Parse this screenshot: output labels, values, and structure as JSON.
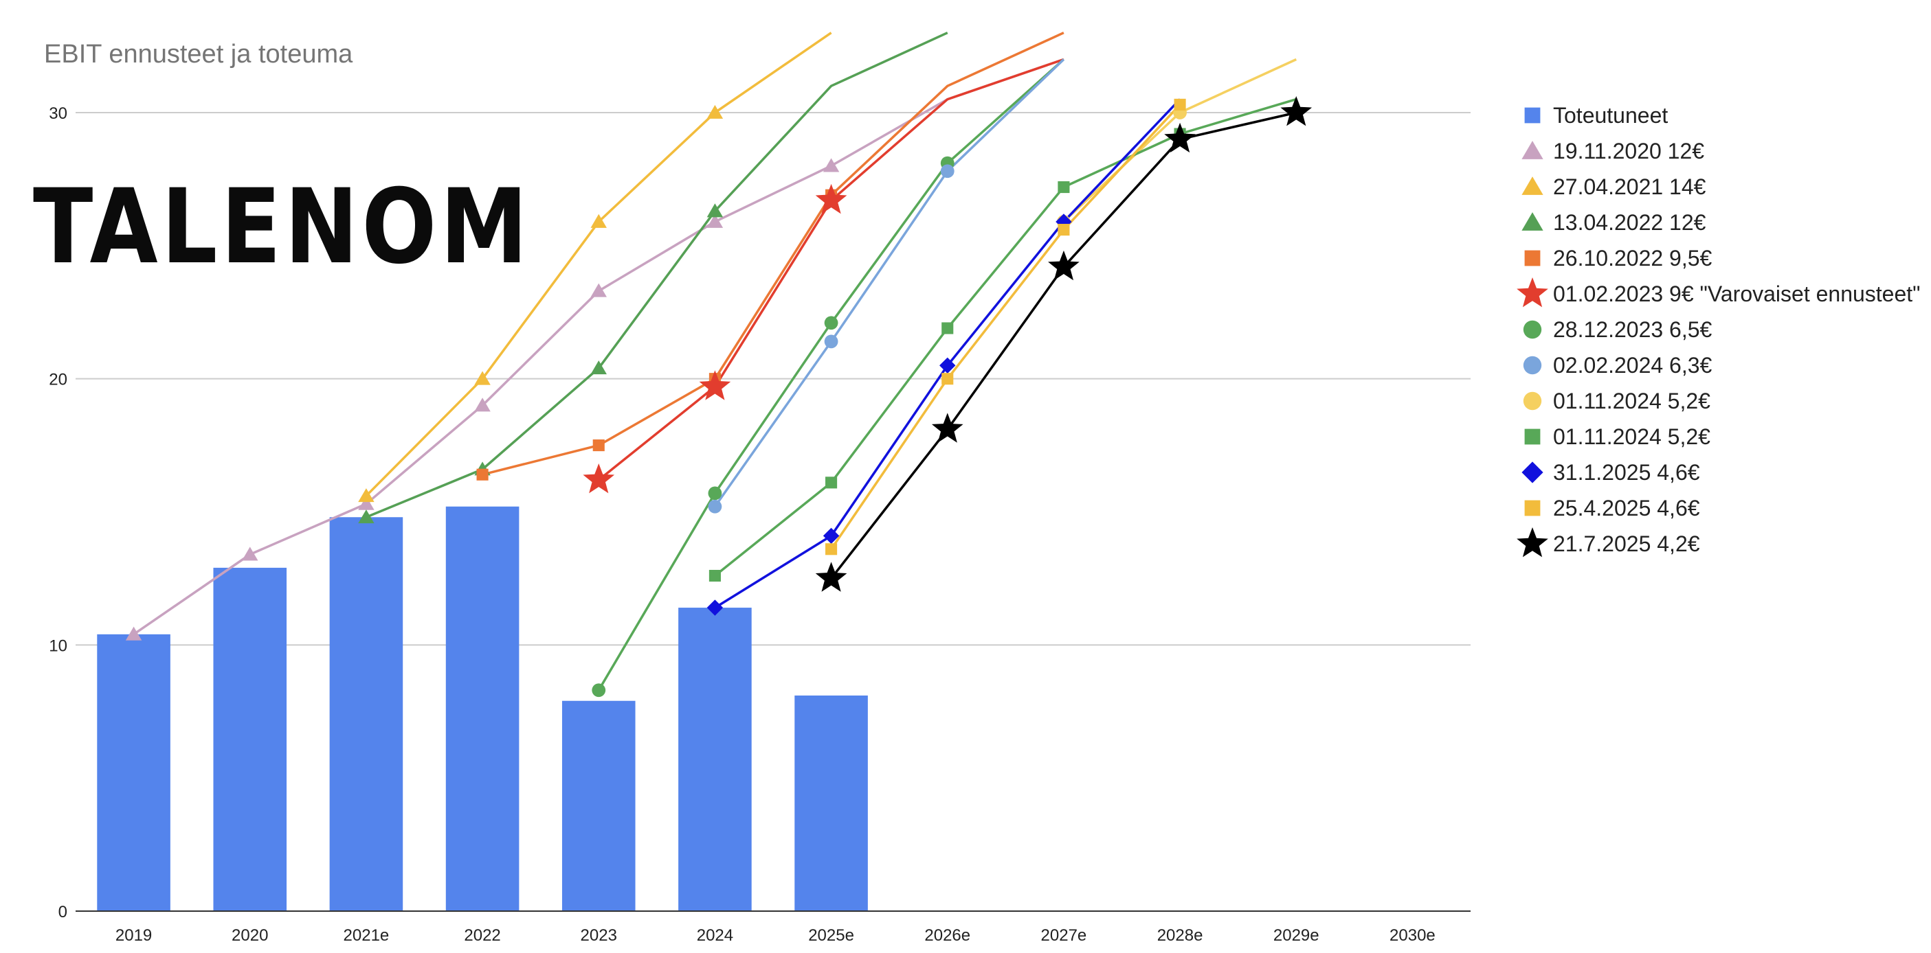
{
  "logo": {
    "text": "TALENOM"
  },
  "chart_data": {
    "type": "bar",
    "title": "EBIT ennusteet ja toteuma",
    "xlabel": "",
    "ylabel": "",
    "categories": [
      "2019",
      "2020",
      "2021e",
      "2022",
      "2023",
      "2024",
      "2025e",
      "2026e",
      "2027e",
      "2028e",
      "2029e",
      "2030e"
    ],
    "ylim": [
      0,
      30
    ],
    "yticks": [
      0,
      10,
      20,
      30
    ],
    "grid": true,
    "legend_position": "right",
    "bars": {
      "name": "Toteutuneet",
      "color": "#5484ec",
      "marker": "square",
      "values": [
        10.4,
        12.9,
        14.8,
        15.2,
        7.9,
        11.4,
        8.1,
        null,
        null,
        null,
        null,
        null
      ]
    },
    "series": [
      {
        "name": "19.11.2020 12€",
        "color": "#c8a2c0",
        "marker": "triangle",
        "values": [
          10.4,
          13.4,
          15.3,
          19.0,
          23.3,
          25.9,
          28.0,
          30.5,
          32.0,
          null,
          null,
          null
        ]
      },
      {
        "name": "27.04.2021 14€",
        "color": "#f2bc3c",
        "marker": "triangle",
        "values": [
          null,
          null,
          15.6,
          20.0,
          25.9,
          30.0,
          33.0,
          null,
          null,
          null,
          null,
          null
        ]
      },
      {
        "name": "13.04.2022 12€",
        "color": "#55a055",
        "marker": "triangle",
        "values": [
          null,
          null,
          14.8,
          16.6,
          20.4,
          26.3,
          31.0,
          33.0,
          null,
          null,
          null,
          null
        ]
      },
      {
        "name": "26.10.2022 9,5€",
        "color": "#ec7834",
        "marker": "square",
        "values": [
          null,
          null,
          null,
          16.4,
          17.5,
          20.0,
          26.9,
          31.0,
          33.0,
          null,
          null,
          null
        ]
      },
      {
        "name": "01.02.2023 9€ \"Varovaiset ennusteet\"",
        "color": "#e23d2e",
        "marker": "star",
        "values": [
          null,
          null,
          null,
          null,
          16.2,
          19.7,
          26.7,
          30.5,
          32.0,
          null,
          null,
          null
        ]
      },
      {
        "name": "28.12.2023 6,5€",
        "color": "#58a858",
        "marker": "circle",
        "values": [
          null,
          null,
          null,
          null,
          8.3,
          15.7,
          22.1,
          28.1,
          32.0,
          null,
          null,
          null
        ]
      },
      {
        "name": "02.02.2024 6,3€",
        "color": "#7aa5dc",
        "marker": "circle",
        "values": [
          null,
          null,
          null,
          null,
          null,
          15.2,
          21.4,
          27.8,
          32.0,
          null,
          null,
          null
        ]
      },
      {
        "name": "01.11.2024 5,2€",
        "color": "#f5d060",
        "marker": "circle",
        "values": [
          null,
          null,
          null,
          null,
          null,
          null,
          null,
          null,
          25.9,
          30.0,
          32.0,
          null
        ]
      },
      {
        "name": "01.11.2024 5,2€",
        "color": "#58a858",
        "marker": "square",
        "values": [
          null,
          null,
          null,
          null,
          null,
          12.6,
          16.1,
          21.9,
          27.2,
          29.2,
          30.5,
          null
        ]
      },
      {
        "name": "31.1.2025 4,6€",
        "color": "#1111dd",
        "marker": "diamond",
        "values": [
          null,
          null,
          null,
          null,
          null,
          11.4,
          14.1,
          20.5,
          25.9,
          30.5,
          null,
          null
        ]
      },
      {
        "name": "25.4.2025 4,6€",
        "color": "#f2bc3c",
        "marker": "square",
        "values": [
          null,
          null,
          null,
          null,
          null,
          null,
          13.6,
          20.0,
          25.6,
          30.3,
          null,
          null
        ]
      },
      {
        "name": "21.7.2025 4,2€",
        "color": "#000000",
        "marker": "star",
        "values": [
          null,
          null,
          null,
          null,
          null,
          null,
          12.5,
          18.1,
          24.2,
          29.0,
          30.0,
          null
        ]
      }
    ]
  }
}
